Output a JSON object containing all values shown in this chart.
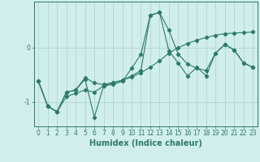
{
  "xlabel": "Humidex (Indice chaleur)",
  "background_color": "#d0eeec",
  "line_color": "#2d7a6a",
  "grid_color": "#b8d8d5",
  "x_values": [
    0,
    1,
    2,
    3,
    4,
    5,
    6,
    7,
    8,
    9,
    10,
    11,
    12,
    13,
    14,
    15,
    16,
    17,
    18,
    19,
    20,
    21,
    22,
    23
  ],
  "series1": [
    -0.62,
    -1.08,
    -1.18,
    -0.82,
    -0.78,
    -0.58,
    -1.28,
    -0.7,
    -0.68,
    -0.62,
    -0.38,
    -0.12,
    0.6,
    0.65,
    0.32,
    -0.12,
    -0.3,
    -0.38,
    -0.42,
    -0.1,
    0.06,
    -0.04,
    -0.28,
    -0.36
  ],
  "series2": [
    -0.62,
    -1.08,
    -1.18,
    -0.82,
    -0.78,
    -0.55,
    -0.65,
    -0.68,
    -0.64,
    -0.6,
    -0.52,
    -0.42,
    0.6,
    0.65,
    -0.06,
    -0.28,
    -0.52,
    -0.36,
    -0.52,
    -0.1,
    0.06,
    -0.04,
    -0.28,
    -0.36
  ],
  "series3": [
    -0.62,
    -1.08,
    -1.18,
    -0.9,
    -0.84,
    -0.78,
    -0.82,
    -0.7,
    -0.65,
    -0.6,
    -0.54,
    -0.46,
    -0.36,
    -0.24,
    -0.1,
    0.0,
    0.08,
    0.14,
    0.19,
    0.23,
    0.26,
    0.27,
    0.28,
    0.29
  ],
  "ylim": [
    -1.45,
    0.85
  ],
  "xlim": [
    -0.5,
    23.5
  ],
  "yticks": [
    -1,
    0
  ],
  "xticks": [
    0,
    1,
    2,
    3,
    4,
    5,
    6,
    7,
    8,
    9,
    10,
    11,
    12,
    13,
    14,
    15,
    16,
    17,
    18,
    19,
    20,
    21,
    22,
    23
  ],
  "xtick_labels": [
    "0",
    "1",
    "2",
    "3",
    "4",
    "5",
    "6",
    "7",
    "8",
    "9",
    "10",
    "11",
    "12",
    "13",
    "14",
    "15",
    "16",
    "17",
    "18",
    "19",
    "20",
    "21",
    "22",
    "23"
  ],
  "fontsize_xlabel": 7,
  "fontsize_ticks": 5.5
}
